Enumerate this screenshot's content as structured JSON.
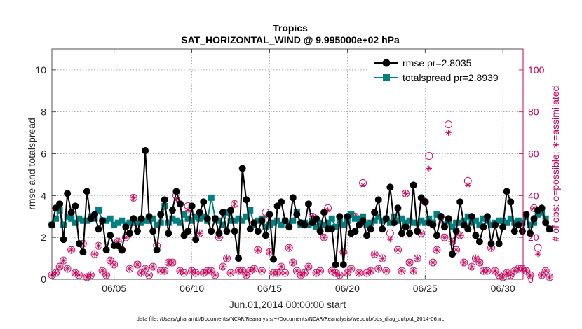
{
  "chart_data": {
    "type": "line",
    "title": "Tropics",
    "subtitle": "SAT_HORIZONTAL_WIND @ 9.995000e+02 hPa",
    "xlabel": "Jun.01,2014 00:00:00 start",
    "ylabel": "rmse and totalspread",
    "y2label": "# of obs: o=possible; ∗=assimilated",
    "footnote": "data file: /Users/gharamti/Documents/NCAR/Reanalysis/~/Documents/NCAR/Reanalysis/webpub/obs_diag_output_2014-06.nc",
    "xlim": [
      1,
      31.3
    ],
    "ylim": [
      0,
      11
    ],
    "y2lim": [
      0,
      110
    ],
    "xticks": [
      5,
      10,
      15,
      20,
      25,
      30
    ],
    "xtick_labels": [
      "06/05",
      "06/10",
      "06/15",
      "06/20",
      "06/25",
      "06/30"
    ],
    "yticks": [
      0,
      2,
      4,
      6,
      8,
      10
    ],
    "ytick_labels": [
      "0",
      "2",
      "4",
      "6",
      "8",
      "10"
    ],
    "y2ticks": [
      0,
      20,
      40,
      60,
      80,
      100
    ],
    "y2tick_labels": [
      "0",
      "20",
      "40",
      "60",
      "80",
      "100"
    ],
    "legend_position": "top-right",
    "series": [
      {
        "name": "rmse pr=2.8035",
        "axis": "left",
        "color": "#000000",
        "marker": "circle",
        "values": [
          2.6,
          3.4,
          3.6,
          1.9,
          4.1,
          3.2,
          3.5,
          1.7,
          1.3,
          4.2,
          2.9,
          3.1,
          2.4,
          2.8,
          1.4,
          2.1,
          1.6,
          1.6,
          1.4,
          2.5,
          2.2,
          2.9,
          2.3,
          2.9,
          6.15,
          3.0,
          2.3,
          1.4,
          3.1,
          3.8,
          2.2,
          3.3,
          4.2,
          3.6,
          2.1,
          2.3,
          3.5,
          1.9,
          3.2,
          3.7,
          2.9,
          2.3,
          2.9,
          2.2,
          3.2,
          2.3,
          3.3,
          2.3,
          1.0,
          5.3,
          3.8,
          2.4,
          2.7,
          2.3,
          2.8,
          2.1,
          3.1,
          0.95,
          3.5,
          3.7,
          2.8,
          2.5,
          3.9,
          3.1,
          2.7,
          2.6,
          3.6,
          2.7,
          2.9,
          2.3,
          3.2,
          2.4,
          2.4,
          0.7,
          3.0,
          0.7,
          3.0,
          2.2,
          2.3,
          2.6,
          2.8,
          2.1,
          2.4,
          3.2,
          3.8,
          2.4,
          2.9,
          4.4,
          2.7,
          3.4,
          2.2,
          2.5,
          2.2,
          4.5,
          2.3,
          3.9,
          3.7,
          2.7,
          2.6,
          2.1,
          3.0,
          2.5,
          2.9,
          1.2,
          2.3,
          3.7,
          2.6,
          2.4,
          3.0,
          2.1,
          1.8,
          2.5,
          3.0,
          1.7,
          2.6,
          1.7,
          2.5,
          4.2,
          3.7,
          2.3,
          2.6,
          2.3,
          3.1,
          2.2,
          2.9,
          3.3,
          3.4,
          2.7,
          2.4
        ]
      },
      {
        "name": "totalspread pr=2.8939",
        "axis": "left",
        "color": "#008080",
        "marker": "square",
        "values": [
          2.6,
          2.9,
          3.3,
          2.6,
          3.0,
          2.9,
          2.7,
          2.9,
          2.8,
          2.8,
          3.0,
          2.9,
          3.3,
          2.8,
          2.8,
          2.9,
          2.6,
          2.7,
          2.8,
          2.6,
          2.7,
          2.7,
          2.7,
          2.7,
          2.8,
          2.8,
          2.9,
          2.6,
          2.7,
          3.5,
          2.7,
          2.9,
          2.8,
          2.7,
          3.1,
          2.9,
          2.8,
          3.0,
          2.9,
          3.0,
          2.8,
          3.9,
          2.9,
          2.8,
          2.6,
          3.2,
          2.8,
          2.8,
          2.9,
          2.8,
          3.0,
          3.3,
          2.6,
          2.8,
          2.9,
          2.5,
          2.6,
          2.7,
          2.8,
          2.6,
          2.8,
          2.6,
          2.8,
          3.2,
          2.6,
          2.7,
          2.6,
          2.8,
          2.5,
          2.7,
          2.6,
          2.7,
          2.9,
          2.5,
          2.9,
          2.6,
          2.8,
          3.1,
          2.9,
          2.9,
          3.0,
          2.6,
          2.7,
          2.8,
          3.0,
          2.8,
          2.9,
          2.7,
          3.0,
          2.8,
          2.9,
          2.7,
          2.8,
          2.7,
          2.7,
          2.8,
          2.7,
          2.9,
          2.7,
          3.1,
          3.0,
          2.6,
          2.8,
          2.5,
          2.7,
          2.7,
          2.8,
          3.0,
          2.7,
          2.8,
          2.6,
          2.9,
          2.8,
          2.6,
          2.7,
          2.8,
          2.8,
          2.7,
          2.9,
          2.7,
          2.8,
          2.7,
          3.0,
          2.6,
          2.7,
          3.1,
          3.2,
          2.9,
          2.4
        ]
      },
      {
        "name": "possible obs",
        "axis": "right",
        "color": "#c8005a",
        "marker": "open-circle",
        "values": [
          2,
          3,
          6,
          9,
          5,
          14,
          3,
          2,
          17,
          1,
          2,
          12,
          16,
          4,
          2,
          9,
          7,
          18,
          14,
          20,
          5,
          39,
          7,
          3,
          5,
          2,
          6,
          16,
          4,
          4,
          8,
          8,
          40,
          4,
          3,
          35,
          4,
          3,
          22,
          3,
          4,
          4,
          2,
          20,
          6,
          10,
          3,
          36,
          4,
          4,
          2,
          4,
          5,
          14,
          4,
          32,
          13,
          3,
          3,
          6,
          3,
          15,
          8,
          4,
          2,
          3,
          6,
          30,
          3,
          4,
          20,
          34,
          4,
          3,
          2,
          13,
          3,
          5,
          30,
          3,
          46,
          3,
          4,
          12,
          5,
          10,
          4,
          22,
          28,
          14,
          4,
          41,
          8,
          4,
          10,
          22,
          37,
          59,
          8,
          14,
          30,
          20,
          74,
          18,
          14,
          21,
          8,
          47,
          6,
          10,
          8,
          4,
          4,
          15,
          4,
          2,
          1,
          3,
          2,
          4,
          5,
          5,
          4,
          2,
          34,
          15,
          2,
          4,
          1
        ]
      },
      {
        "name": "assimilated obs",
        "axis": "right",
        "color": "#c8005a",
        "marker": "asterisk",
        "values": [
          2,
          3,
          6,
          9,
          5,
          14,
          3,
          2,
          17,
          1,
          2,
          12,
          16,
          4,
          2,
          9,
          7,
          18,
          14,
          20,
          5,
          39,
          7,
          3,
          5,
          2,
          6,
          16,
          4,
          4,
          8,
          8,
          38,
          4,
          3,
          33,
          4,
          3,
          22,
          3,
          4,
          4,
          2,
          20,
          6,
          10,
          3,
          36,
          4,
          4,
          2,
          4,
          5,
          14,
          4,
          30,
          13,
          3,
          3,
          6,
          3,
          15,
          8,
          4,
          2,
          3,
          6,
          30,
          3,
          4,
          20,
          33,
          4,
          3,
          2,
          13,
          3,
          5,
          30,
          3,
          45,
          3,
          4,
          12,
          5,
          10,
          4,
          19,
          28,
          14,
          4,
          41,
          8,
          4,
          10,
          22,
          37,
          53,
          8,
          14,
          28,
          20,
          70,
          18,
          14,
          21,
          8,
          45,
          6,
          10,
          8,
          4,
          4,
          15,
          4,
          2,
          1,
          3,
          2,
          4,
          5,
          5,
          4,
          2,
          34,
          12,
          2,
          4,
          1
        ]
      }
    ]
  }
}
